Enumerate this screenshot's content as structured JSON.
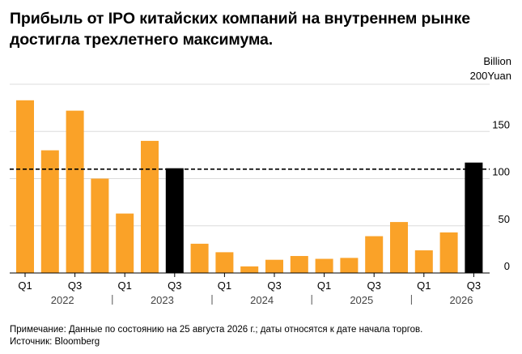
{
  "title": "Прибыль от IPO китайских компаний на внутреннем рынке достигла трехлетнего максимума.",
  "footer": {
    "note": "Примечание: Данные по состоянию на 25 августа 2026 г.; даты относятся к дате начала торгов.",
    "source": "Источник: Bloomberg"
  },
  "colors": {
    "bar": "#FAA228",
    "highlight": "#000000",
    "grid": "#dcdcdc",
    "reference": "#000000"
  },
  "chart_data": {
    "type": "bar",
    "title": "Прибыль от IPO китайских компаний на внутреннем рынке достигла трехлетнего максимума.",
    "ylabel": "Billion Yuan",
    "unit_line1": "Billion",
    "unit_line2": "200Yuan",
    "ylim": [
      0,
      200
    ],
    "yticks": [
      0,
      50,
      100,
      150
    ],
    "grid": true,
    "reference_line": 110,
    "categories": [
      "2022 Q1",
      "2022 Q2",
      "2022 Q3",
      "2022 Q4",
      "2023 Q1",
      "2023 Q2",
      "2023 Q3",
      "2023 Q4",
      "2024 Q1",
      "2024 Q2",
      "2024 Q3",
      "2024 Q4",
      "2025 Q1",
      "2025 Q2",
      "2025 Q3",
      "2025 Q4",
      "2026 Q1",
      "2026 Q2",
      "2026 Q3"
    ],
    "values": [
      183,
      130,
      172,
      100,
      63,
      140,
      111,
      31,
      22,
      7,
      14,
      18,
      15,
      16,
      39,
      54,
      24,
      43,
      117
    ],
    "highlighted": [
      false,
      false,
      false,
      false,
      false,
      false,
      true,
      false,
      false,
      false,
      false,
      false,
      false,
      false,
      false,
      false,
      false,
      false,
      true
    ],
    "quarter_labels": [
      "Q1",
      "",
      "Q3",
      "",
      "Q1",
      "",
      "Q3",
      "",
      "Q1",
      "",
      "Q3",
      "",
      "Q1",
      "",
      "Q3",
      "",
      "Q1",
      "",
      "Q3"
    ],
    "years": [
      "2022",
      "2023",
      "2024",
      "2025",
      "2026"
    ]
  }
}
